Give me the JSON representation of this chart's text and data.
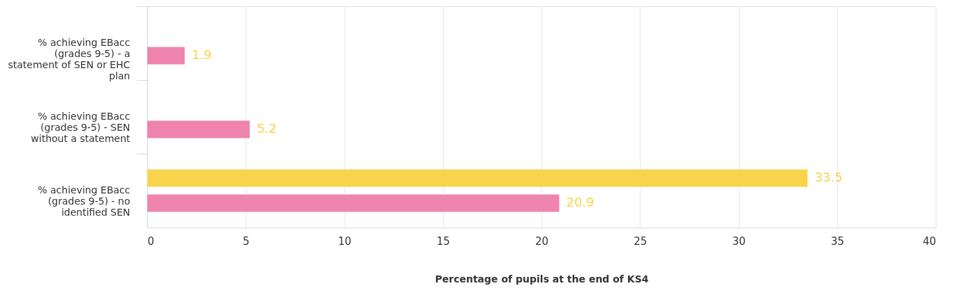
{
  "chart_data": {
    "type": "bar",
    "orientation": "horizontal",
    "xlabel": "Percentage of pupils at the end of KS4",
    "categories": [
      "% achieving EBacc (grades 9-5) - a statement of SEN or EHC plan",
      "% achieving EBacc (grades 9-5) - SEN without a statement",
      "% achieving EBacc (grades 9-5) - no identified SEN"
    ],
    "series": [
      {
        "color": "#fad34c",
        "values": [
          null,
          null,
          33.5
        ]
      },
      {
        "color": "#ef84ae",
        "values": [
          1.9,
          5.2,
          20.9
        ]
      }
    ],
    "xlim": [
      0,
      40
    ],
    "xticks": [
      0,
      5,
      10,
      15,
      20,
      25,
      30,
      35,
      40
    ],
    "grid": "x",
    "data_labels": true
  }
}
